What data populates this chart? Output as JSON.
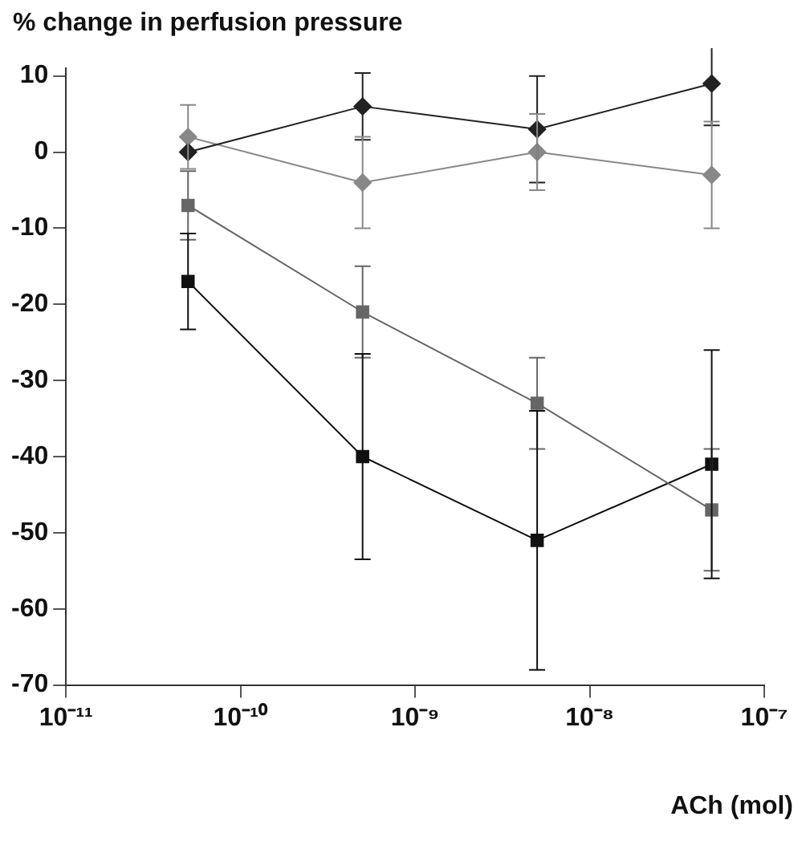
{
  "chart_data": {
    "type": "line",
    "ylabel": "% change in perfusion pressure",
    "xlabel": "ACh (mol)",
    "log": "x",
    "x": [
      5e-11,
      5e-10,
      5e-09,
      5e-08
    ],
    "series": [
      {
        "color": "#222222",
        "values": [
          0,
          6,
          3,
          9
        ],
        "errors": [
          null,
          4.4,
          7,
          5.5
        ],
        "marker": "diamond"
      },
      {
        "color": "#888888",
        "values": [
          2,
          -4,
          0,
          -3
        ],
        "errors": [
          4.2,
          6,
          5,
          7
        ],
        "marker": "diamond"
      },
      {
        "color": "#666666",
        "values": [
          -7,
          -21,
          -33,
          -47
        ],
        "errors": [
          4.5,
          6,
          6,
          8
        ],
        "marker": "square"
      },
      {
        "color": "#111111",
        "values": [
          -17,
          -40,
          -51,
          -41
        ],
        "errors": [
          6.3,
          13.5,
          17,
          15
        ],
        "marker": "square"
      }
    ],
    "xlim": [
      1e-11,
      1e-07
    ],
    "xticks": [
      {
        "value": 1e-11,
        "label": "10⁻¹¹"
      },
      {
        "value": 1e-10,
        "label": "10⁻¹⁰"
      },
      {
        "value": 1e-09,
        "label": "10⁻⁹"
      },
      {
        "value": 1e-08,
        "label": "10⁻⁸"
      },
      {
        "value": 1e-07,
        "label": "10⁻⁷"
      }
    ],
    "ylim": [
      -70,
      11
    ],
    "yticks": [
      -70,
      -60,
      -50,
      -40,
      -30,
      -20,
      -10,
      0,
      10
    ],
    "grid": false,
    "legend": false,
    "line_style": "solid"
  }
}
